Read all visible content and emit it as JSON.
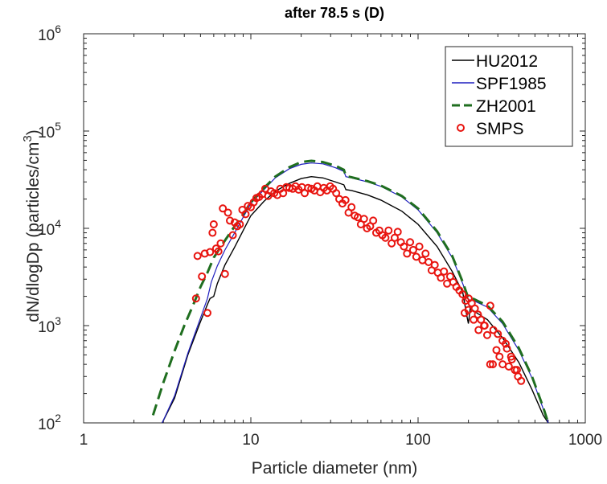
{
  "chart_data": {
    "type": "line",
    "title": "after 78.5 s (D)",
    "xlabel": "Particle diameter (nm)",
    "ylabel_main": "dN/dlogDp (particles/cm",
    "ylabel_sup": "3",
    "ylabel_close": ")",
    "xscale": "log",
    "yscale": "log",
    "xlim": [
      1,
      1000
    ],
    "ylim": [
      100,
      1000000
    ],
    "xticks": [
      {
        "value": 1,
        "label": "1"
      },
      {
        "value": 10,
        "label": "10"
      },
      {
        "value": 100,
        "label": "100"
      },
      {
        "value": 1000,
        "label": "1000"
      }
    ],
    "yticks": [
      {
        "value": 100,
        "base": "10",
        "exp": "2"
      },
      {
        "value": 1000,
        "base": "10",
        "exp": "3"
      },
      {
        "value": 10000,
        "base": "10",
        "exp": "4"
      },
      {
        "value": 100000,
        "base": "10",
        "exp": "5"
      },
      {
        "value": 1000000,
        "base": "10",
        "exp": "6"
      }
    ],
    "grid": false,
    "legend_position": "top-right",
    "series": [
      {
        "name": "HU2012",
        "style": "solid",
        "color": "#000000",
        "x": [
          2.95,
          3.5,
          4.2,
          5.0,
          5.5,
          5.7,
          6.0,
          6.3,
          7.0,
          8.0,
          9.0,
          10.0,
          12.0,
          14.0,
          17.0,
          20.0,
          23.0,
          27.0,
          32.0,
          36.0,
          37.0,
          40.0,
          50.0,
          60.0,
          80.0,
          100.0,
          130.0,
          160.0,
          185.0,
          195.0,
          200.0,
          205.0,
          220.0,
          260.0,
          320.0,
          400.0,
          480.0,
          560.0,
          600.0
        ],
        "y": [
          100,
          180,
          500,
          1100,
          1650,
          1900,
          2000,
          2700,
          4200,
          6400,
          9500,
          13500,
          19000,
          24000,
          29000,
          32500,
          34000,
          33000,
          30000,
          28000,
          25000,
          24500,
          22000,
          19500,
          15000,
          11000,
          6500,
          3600,
          2200,
          1300,
          1050,
          1500,
          1380,
          1150,
          750,
          420,
          220,
          120,
          100
        ]
      },
      {
        "name": "SPF1985",
        "style": "solid",
        "color": "#1f1fbf",
        "x": [
          2.95,
          3.5,
          4.2,
          5.0,
          5.5,
          5.8,
          6.3,
          7.0,
          8.0,
          9.0,
          10.0,
          12.0,
          14.0,
          17.0,
          20.0,
          23.0,
          27.0,
          32.0,
          36.0,
          37.0,
          40.0,
          50.0,
          60.0,
          80.0,
          100.0,
          130.0,
          160.0,
          185.0,
          200.0,
          215.0,
          260.0,
          320.0,
          400.0,
          480.0,
          560.0,
          600.0
        ],
        "y": [
          100,
          190,
          520,
          1200,
          1900,
          2800,
          4100,
          6000,
          9000,
          13000,
          18000,
          25000,
          33000,
          41000,
          45500,
          47000,
          46000,
          42000,
          38500,
          34000,
          33000,
          30000,
          27000,
          21000,
          15500,
          9000,
          5000,
          2700,
          1850,
          1800,
          1550,
          1050,
          560,
          290,
          140,
          100
        ]
      },
      {
        "name": "ZH2001",
        "style": "dashed",
        "color": "#1f6e1f",
        "x": [
          2.6,
          3.0,
          3.5,
          4.0,
          4.5,
          5.0,
          5.5,
          6.0,
          7.0,
          8.0,
          9.0,
          10.0,
          12.0,
          14.0,
          17.0,
          20.0,
          23.0,
          27.0,
          32.0,
          36.0,
          37.0,
          40.0,
          50.0,
          60.0,
          80.0,
          100.0,
          130.0,
          160.0,
          185.0,
          200.0,
          215.0,
          260.0,
          320.0,
          400.0,
          480.0,
          560.0,
          600.0
        ],
        "y": [
          120,
          260,
          550,
          1000,
          1600,
          2500,
          3500,
          5000,
          7500,
          10500,
          14000,
          18500,
          26000,
          34000,
          42500,
          48000,
          49500,
          48000,
          44000,
          40000,
          34500,
          33500,
          30500,
          27500,
          21500,
          16000,
          9300,
          5200,
          2800,
          1900,
          1880,
          1600,
          1100,
          590,
          300,
          145,
          100
        ]
      },
      {
        "name": "SMPS",
        "style": "markers",
        "color": "#e8140f",
        "x": [
          4.7,
          4.8,
          5.1,
          5.3,
          5.5,
          5.7,
          5.9,
          6.0,
          6.2,
          6.4,
          6.6,
          6.8,
          7.0,
          7.3,
          7.5,
          7.8,
          8.0,
          8.3,
          8.6,
          8.9,
          9.3,
          9.6,
          10.0,
          10.4,
          10.8,
          11.2,
          11.7,
          12.2,
          12.7,
          13.2,
          13.8,
          14.4,
          15.0,
          15.6,
          16.3,
          17.0,
          17.8,
          18.5,
          19.3,
          20.2,
          21.0,
          22.0,
          23.0,
          24.0,
          25.0,
          26.0,
          27.3,
          28.5,
          29.8,
          31.0,
          32.4,
          33.8,
          35.3,
          36.8,
          38.4,
          40.0,
          41.8,
          43.6,
          45.5,
          47.5,
          49.5,
          51.7,
          53.9,
          56.2,
          58.7,
          61.2,
          63.8,
          66.6,
          69.5,
          72.5,
          75.6,
          78.9,
          82.3,
          85.9,
          89.6,
          93.5,
          97.6,
          101.8,
          106.2,
          110.8,
          115.6,
          120.6,
          125.8,
          131.3,
          137.0,
          142.9,
          149.1,
          155.6,
          162.3,
          169.4,
          176.7,
          184.4,
          192.4,
          200.7,
          209.4,
          218.5,
          228.0,
          237.9,
          248.2,
          259.0,
          270.2,
          281.9,
          294.2,
          306.9,
          320.3,
          334.2,
          348.7,
          363.8,
          379.6,
          396.1,
          413.2
        ],
        "y": [
          1900,
          5200,
          3200,
          5500,
          1350,
          5700,
          9000,
          11000,
          6200,
          5800,
          7000,
          16000,
          3400,
          14500,
          12000,
          8500,
          11500,
          10500,
          11000,
          15500,
          14000,
          17000,
          16500,
          18500,
          20500,
          21000,
          22500,
          25500,
          21500,
          24000,
          23000,
          22000,
          25500,
          23000,
          26500,
          26000,
          25500,
          27000,
          25000,
          26500,
          23000,
          26000,
          25500,
          24500,
          27000,
          23500,
          26000,
          24500,
          27000,
          25500,
          23000,
          20000,
          18000,
          19500,
          14500,
          16500,
          13500,
          13000,
          11000,
          12500,
          10000,
          10500,
          12000,
          9000,
          9500,
          8500,
          8000,
          9500,
          7000,
          8000,
          9200,
          7200,
          6500,
          5500,
          7200,
          6000,
          5100,
          6500,
          4700,
          5500,
          4500,
          3700,
          4200,
          3500,
          3100,
          3600,
          2700,
          3200,
          2800,
          2500,
          2300,
          2100,
          1800,
          1900,
          1700,
          1500,
          1300,
          1150,
          1000,
          800,
          1600,
          900,
          560,
          480,
          400,
          650,
          380,
          450,
          350,
          300,
          270
        ],
        "x2": [
          190,
          200,
          215,
          230,
          250,
          270,
          280,
          300,
          320,
          340,
          360,
          390
        ],
        "y2": [
          1350,
          1450,
          1150,
          900,
          1000,
          400,
          400,
          820,
          700,
          580,
          480,
          350
        ]
      }
    ]
  }
}
